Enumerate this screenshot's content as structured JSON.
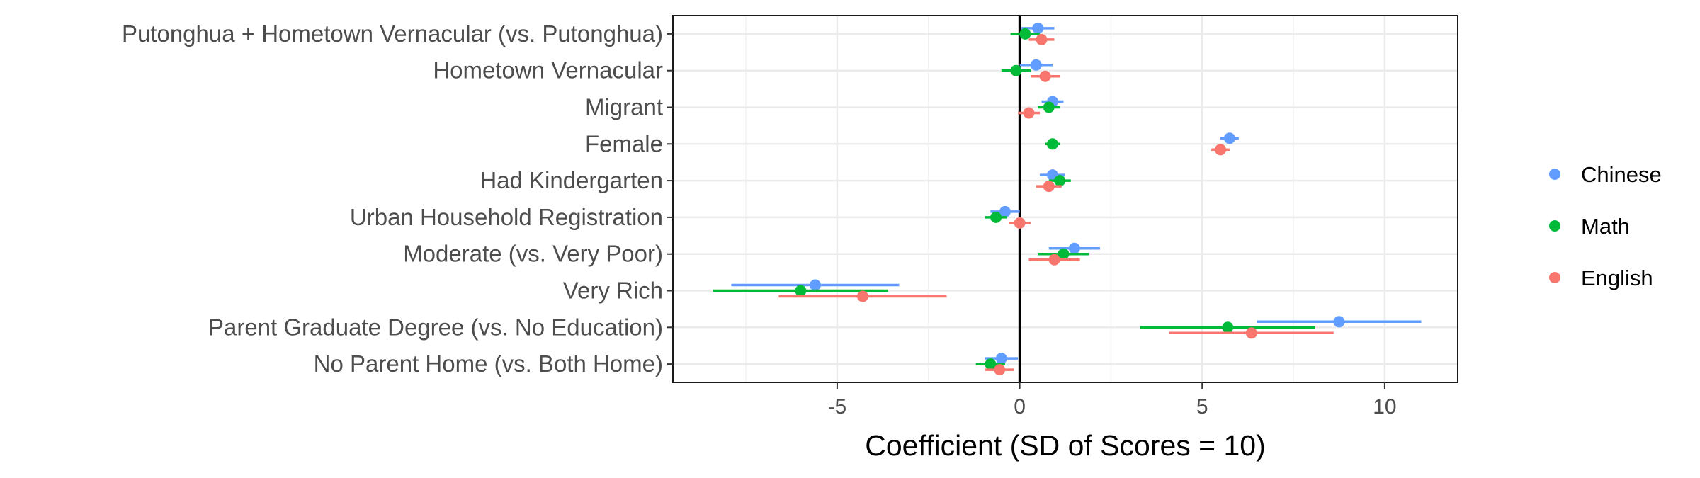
{
  "chart_data": {
    "type": "forest",
    "xlabel": "Coefficient (SD of Scores = 10)",
    "ylabel": "",
    "title": "",
    "xlim": [
      -9.5,
      12
    ],
    "x_ticks": [
      -5,
      0,
      5,
      10
    ],
    "x_tick_labels": [
      "-5",
      "0",
      "5",
      "10"
    ],
    "reference_line": 0,
    "grid": true,
    "legend_position": "right",
    "categories": [
      "Putonghua + Hometown Vernacular (vs. Putonghua)",
      "Hometown Vernacular",
      "Migrant",
      "Female",
      "Had Kindergarten",
      "Urban Household Registration",
      "Moderate (vs. Very Poor)",
      "Very Rich",
      "Parent Graduate Degree (vs. No Education)",
      "No Parent Home (vs. Both Home)"
    ],
    "series": [
      {
        "name": "Chinese",
        "color": "#619CFF",
        "estimates": [
          0.5,
          0.45,
          0.9,
          5.75,
          0.9,
          -0.4,
          1.5,
          -5.6,
          8.75,
          -0.5
        ],
        "lower": [
          0.05,
          0.0,
          0.6,
          5.5,
          0.55,
          -0.8,
          0.8,
          -7.9,
          6.5,
          -0.95
        ],
        "upper": [
          0.95,
          0.9,
          1.2,
          6.0,
          1.25,
          0.0,
          2.2,
          -3.3,
          11.0,
          -0.05
        ]
      },
      {
        "name": "Math",
        "color": "#00BA38",
        "estimates": [
          0.15,
          -0.1,
          0.8,
          0.9,
          1.1,
          -0.65,
          1.2,
          -6.0,
          5.7,
          -0.8
        ],
        "lower": [
          -0.25,
          -0.5,
          0.5,
          0.7,
          0.8,
          -0.95,
          0.5,
          -8.4,
          3.3,
          -1.2
        ],
        "upper": [
          0.55,
          0.3,
          1.1,
          1.1,
          1.4,
          -0.35,
          1.9,
          -3.6,
          8.1,
          -0.4
        ]
      },
      {
        "name": "English",
        "color": "#F8766D",
        "estimates": [
          0.6,
          0.7,
          0.25,
          5.5,
          0.8,
          0.0,
          0.95,
          -4.3,
          6.35,
          -0.55
        ],
        "lower": [
          0.25,
          0.3,
          -0.05,
          5.25,
          0.45,
          -0.3,
          0.25,
          -6.6,
          4.1,
          -0.95
        ],
        "upper": [
          0.95,
          1.1,
          0.55,
          5.75,
          1.15,
          0.3,
          1.65,
          -2.0,
          8.6,
          -0.15
        ]
      }
    ]
  }
}
